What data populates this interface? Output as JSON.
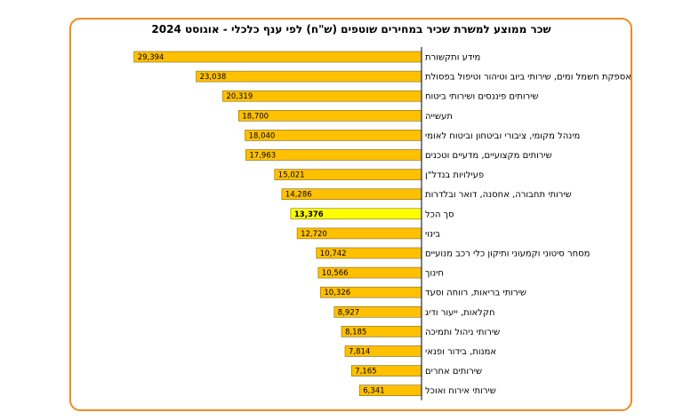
{
  "chart_data": {
    "type": "bar",
    "orientation": "horizontal",
    "direction": "right-to-left",
    "title": "שכר ממוצע למשרת שכיר במחירים שוטפים (ש\"ח) לפי ענף כלכלי - אוגוסט 2024",
    "xlabel": "",
    "ylabel": "",
    "xlim": [
      0,
      30000
    ],
    "grid": false,
    "legend": "none",
    "bar_color": "#ffc000",
    "highlight_color": "#ffff00",
    "frame_color": "#f08a24",
    "categories": [
      "מידע ותקשורת",
      "אספקת חשמל ומים, שירותי ביוב וטיהור וטיפול בפסולת",
      "שירותים פיננסים ושירותי ביטוח",
      "תעשייה",
      "מינהל מקומי, ציבורי וביטחון וביטוח לאומי",
      "שירותים מקצועיים, מדעיים וטכנים",
      "פעילויות בנדל\"ן",
      "שירותי תחבורה, אחסנה, דואר ובלדרות",
      "סך הכל",
      "בינוי",
      "מסחר סיטוני וקמעוני ותיקון כלי רכב מנועיים",
      "חינוך",
      "שירותי בריאות, רווחה וסעד",
      "חקלאות, ייעור ודיג",
      "שירותי ניהול ותמיכה",
      "אמנות, בידור ופנאי",
      "שירותים אחרים",
      "שירותי אירוח ואוכל"
    ],
    "values": [
      29394,
      23038,
      20319,
      18700,
      18040,
      17963,
      15021,
      14286,
      13376,
      12720,
      10742,
      10566,
      10326,
      8927,
      8185,
      7814,
      7165,
      6341
    ],
    "value_labels": [
      "29,394",
      "23,038",
      "20,319",
      "18,700",
      "18,040",
      "17,963",
      "15,021",
      "14,286",
      "13,376",
      "12,720",
      "10,742",
      "10,566",
      "10,326",
      "8,927",
      "8,185",
      "7,814",
      "7,165",
      "6,341"
    ],
    "highlight_index": 8
  }
}
